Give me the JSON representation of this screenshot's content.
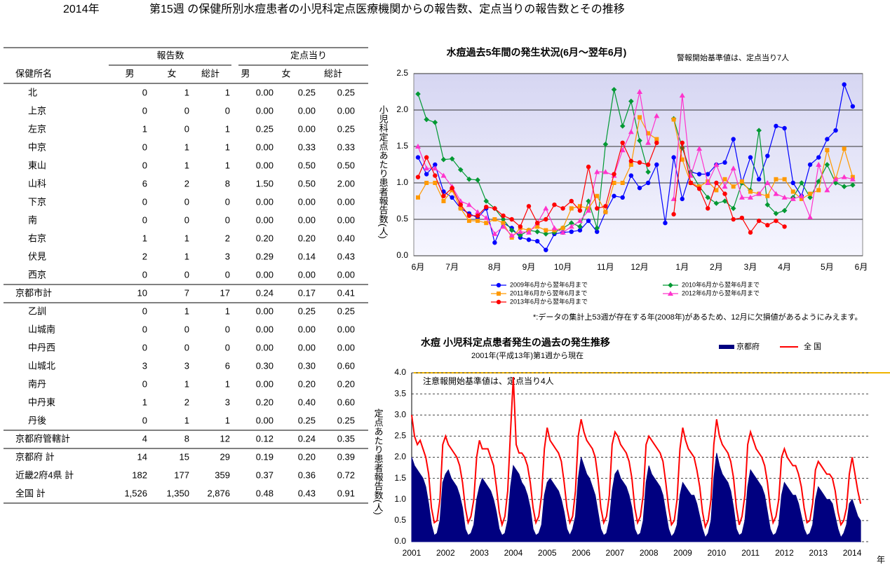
{
  "header": {
    "year": "2014年",
    "title": "第15週 の保健所別水痘患者の小児科定点医療機関からの報告数、定点当りの報告数とその推移"
  },
  "table": {
    "groups": [
      "報告数",
      "定点当り"
    ],
    "columns": [
      "保健所名",
      "男",
      "女",
      "総計",
      "男",
      "女",
      "総計"
    ],
    "sections": [
      {
        "rows": [
          [
            "北",
            "0",
            "1",
            "1",
            "0.00",
            "0.25",
            "0.25"
          ],
          [
            "上京",
            "0",
            "0",
            "0",
            "0.00",
            "0.00",
            "0.00"
          ],
          [
            "左京",
            "1",
            "0",
            "1",
            "0.25",
            "0.00",
            "0.25"
          ],
          [
            "中京",
            "0",
            "1",
            "1",
            "0.00",
            "0.33",
            "0.33"
          ],
          [
            "東山",
            "0",
            "1",
            "1",
            "0.00",
            "0.50",
            "0.50"
          ],
          [
            "山科",
            "6",
            "2",
            "8",
            "1.50",
            "0.50",
            "2.00"
          ],
          [
            "下京",
            "0",
            "0",
            "0",
            "0.00",
            "0.00",
            "0.00"
          ],
          [
            "南",
            "0",
            "0",
            "0",
            "0.00",
            "0.00",
            "0.00"
          ],
          [
            "右京",
            "1",
            "1",
            "2",
            "0.20",
            "0.20",
            "0.40"
          ],
          [
            "伏見",
            "2",
            "1",
            "3",
            "0.29",
            "0.14",
            "0.43"
          ],
          [
            "西京",
            "0",
            "0",
            "0",
            "0.00",
            "0.00",
            "0.00"
          ]
        ],
        "total": [
          "京都市計",
          "10",
          "7",
          "17",
          "0.24",
          "0.17",
          "0.41"
        ]
      },
      {
        "rows": [
          [
            "乙訓",
            "0",
            "1",
            "1",
            "0.00",
            "0.25",
            "0.25"
          ],
          [
            "山城南",
            "0",
            "0",
            "0",
            "0.00",
            "0.00",
            "0.00"
          ],
          [
            "中丹西",
            "0",
            "0",
            "0",
            "0.00",
            "0.00",
            "0.00"
          ],
          [
            "山城北",
            "3",
            "3",
            "6",
            "0.30",
            "0.30",
            "0.60"
          ],
          [
            "南丹",
            "0",
            "1",
            "1",
            "0.00",
            "0.20",
            "0.20"
          ],
          [
            "中丹東",
            "1",
            "2",
            "3",
            "0.20",
            "0.40",
            "0.60"
          ],
          [
            "丹後",
            "0",
            "1",
            "1",
            "0.00",
            "0.25",
            "0.25"
          ]
        ],
        "total": [
          "京都府管轄計",
          "4",
          "8",
          "12",
          "0.12",
          "0.24",
          "0.35"
        ]
      }
    ],
    "totals": [
      [
        "京都府 計",
        "14",
        "15",
        "29",
        "0.19",
        "0.20",
        "0.39"
      ],
      [
        "近畿2府4県 計",
        "182",
        "177",
        "359",
        "0.37",
        "0.36",
        "0.72"
      ],
      [
        "全国 計",
        "1,526",
        "1,350",
        "2,876",
        "0.48",
        "0.43",
        "0.91"
      ]
    ]
  },
  "chart_data": [
    {
      "type": "line",
      "title": "水痘過去5年間の発生状況(6月～翌年6月)",
      "annotation": "警報開始基準値は、定点当り7人",
      "y_label": "小児科定点あたり患者報告数(人)",
      "note": "*:データの集計上53週が存在する年(2008年)があるため、12月に欠損値があるようにみえます。",
      "ylim": [
        0,
        2.5
      ],
      "yticks": [
        {
          "value": 0,
          "label": "0.0"
        },
        0.5,
        {
          "value": 1,
          "label": "1.0"
        },
        1.5,
        {
          "value": 2,
          "label": "2.0"
        },
        2.5
      ],
      "grid": true,
      "categories": [
        "6月",
        null,
        null,
        null,
        "7月",
        null,
        null,
        null,
        null,
        "8月",
        null,
        null,
        null,
        "9月",
        null,
        null,
        null,
        "10月",
        null,
        null,
        null,
        null,
        "11月",
        null,
        null,
        null,
        "12月",
        null,
        null,
        null,
        null,
        "1月",
        null,
        null,
        null,
        "2月",
        null,
        null,
        null,
        "3月",
        null,
        null,
        null,
        "4月",
        null,
        null,
        null,
        null,
        "5月",
        null,
        null,
        null,
        "6月"
      ],
      "series": [
        {
          "name": "2009年6月から翌年6月まで",
          "color": "#0000ff",
          "marker": "circle",
          "values": [
            1.35,
            1.12,
            1.25,
            0.88,
            0.8,
            0.65,
            0.58,
            0.52,
            0.65,
            0.18,
            0.45,
            0.38,
            0.25,
            0.22,
            0.2,
            0.08,
            0.3,
            0.32,
            0.33,
            0.35,
            0.48,
            0.33,
            0.6,
            0.82,
            0.8,
            1.1,
            0.93,
            1.0,
            1.25,
            0.45,
            1.35,
            0.78,
            1.15,
            1.12,
            1.12,
            1.25,
            1.28,
            1.6,
            1.0,
            1.35,
            1.05,
            1.37,
            1.78,
            1.75,
            1.0,
            0.82,
            1.25,
            1.35,
            1.6,
            1.72,
            2.35,
            2.05,
            null
          ]
        },
        {
          "name": "2010年6月から翌年6月まで",
          "color": "#009933",
          "marker": "diamond",
          "values": [
            2.22,
            1.87,
            1.83,
            1.32,
            1.33,
            1.18,
            1.05,
            1.04,
            0.75,
            0.65,
            0.5,
            0.35,
            0.28,
            0.35,
            0.33,
            0.3,
            0.32,
            0.38,
            0.45,
            0.4,
            0.75,
            0.38,
            1.53,
            2.28,
            1.78,
            2.12,
            1.58,
            1.15,
            null,
            null,
            1.88,
            1.48,
            1.15,
            0.95,
            0.8,
            0.72,
            0.75,
            0.65,
            1.0,
            0.9,
            1.72,
            0.7,
            0.58,
            0.62,
            0.8,
            1.0,
            0.8,
            1.02,
            1.25,
            1.0,
            0.95,
            0.97,
            null
          ]
        },
        {
          "name": "2011年6月から翌年6月まで",
          "color": "#ff9900",
          "marker": "square",
          "values": [
            0.8,
            1.0,
            1.0,
            0.75,
            0.9,
            0.65,
            0.48,
            0.48,
            0.45,
            0.5,
            0.45,
            0.25,
            0.38,
            0.35,
            0.4,
            0.35,
            0.35,
            0.38,
            0.65,
            0.68,
            0.65,
            0.82,
            0.6,
            1.0,
            1.0,
            1.25,
            1.9,
            1.68,
            1.6,
            null,
            1.87,
            1.32,
            1.0,
            0.95,
            1.02,
            0.9,
            1.05,
            0.95,
            1.02,
            0.88,
            0.85,
            0.82,
            1.05,
            1.05,
            0.88,
            0.78,
            0.85,
            0.9,
            1.45,
            1.05,
            1.47,
            1.08,
            null
          ]
        },
        {
          "name": "2012年6月から翌年6月まで",
          "color": "#ff33cc",
          "marker": "triangle",
          "values": [
            1.5,
            1.2,
            1.2,
            1.1,
            0.95,
            0.75,
            0.7,
            0.6,
            0.52,
            0.3,
            0.4,
            0.28,
            0.33,
            0.32,
            0.45,
            0.65,
            0.38,
            0.32,
            0.4,
            0.48,
            0.62,
            1.15,
            1.15,
            1.1,
            1.45,
            1.7,
            2.25,
            1.55,
            1.92,
            null,
            0.78,
            2.2,
            1.1,
            1.47,
            1.0,
            1.25,
            0.95,
            1.2,
            0.8,
            0.8,
            0.85,
            1.0,
            0.85,
            0.8,
            0.78,
            0.82,
            0.53,
            1.25,
            0.9,
            1.05,
            1.08,
            1.05,
            null
          ]
        },
        {
          "name": "2013年6月から翌年6月まで",
          "color": "#ff0000",
          "marker": "circle",
          "values": [
            1.08,
            1.35,
            1.1,
            0.82,
            0.93,
            0.7,
            0.55,
            0.55,
            0.67,
            0.65,
            0.55,
            0.5,
            0.4,
            0.68,
            0.45,
            0.5,
            0.7,
            0.65,
            0.75,
            0.62,
            1.22,
            0.65,
            0.68,
            1.12,
            1.55,
            1.3,
            1.28,
            1.25,
            1.55,
            null,
            0.57,
            1.55,
            1.0,
            0.92,
            0.65,
            1.0,
            0.85,
            0.5,
            0.52,
            0.32,
            0.48,
            0.42,
            0.48,
            0.4,
            null,
            null,
            null,
            null,
            null,
            null,
            null,
            null,
            null
          ]
        }
      ]
    },
    {
      "type": "area",
      "title": "水痘 小児科定点患者発生の過去の発生推移",
      "subtitle": "2001年(平成13年)第1週から現在",
      "annotation": "注意報開始基準値は、定点当り4人",
      "y_label": "定点あたり患者報告数(人)",
      "x_label": "年",
      "ylim": [
        0,
        4
      ],
      "yticks": [
        {
          "value": 0,
          "label": "0.0"
        },
        0.5,
        {
          "value": 1,
          "label": "1.0"
        },
        1.5,
        {
          "value": 2,
          "label": "2.0"
        },
        2.5,
        {
          "value": 3,
          "label": "3.0"
        },
        3.5,
        {
          "value": 4,
          "label": "4.0"
        }
      ],
      "grid": true,
      "categories": [
        "2001",
        null,
        null,
        null,
        null,
        null,
        null,
        null,
        null,
        null,
        null,
        null,
        "2002",
        null,
        null,
        null,
        null,
        null,
        null,
        null,
        null,
        null,
        null,
        null,
        "2003",
        null,
        null,
        null,
        null,
        null,
        null,
        null,
        null,
        null,
        null,
        null,
        "2004",
        null,
        null,
        null,
        null,
        null,
        null,
        null,
        null,
        null,
        null,
        null,
        "2005",
        null,
        null,
        null,
        null,
        null,
        null,
        null,
        null,
        null,
        null,
        null,
        "2006",
        null,
        null,
        null,
        null,
        null,
        null,
        null,
        null,
        null,
        null,
        null,
        "2007",
        null,
        null,
        null,
        null,
        null,
        null,
        null,
        null,
        null,
        null,
        null,
        "2008",
        null,
        null,
        null,
        null,
        null,
        null,
        null,
        null,
        null,
        null,
        null,
        "2009",
        null,
        null,
        null,
        null,
        null,
        null,
        null,
        null,
        null,
        null,
        null,
        "2010",
        null,
        null,
        null,
        null,
        null,
        null,
        null,
        null,
        null,
        null,
        null,
        "2011",
        null,
        null,
        null,
        null,
        null,
        null,
        null,
        null,
        null,
        null,
        null,
        "2012",
        null,
        null,
        null,
        null,
        null,
        null,
        null,
        null,
        null,
        null,
        null,
        "2013",
        null,
        null,
        null,
        null,
        null,
        null,
        null,
        null,
        null,
        null,
        null,
        "2014",
        null,
        null,
        null
      ],
      "series": [
        {
          "name": "京都府",
          "color": "#000080",
          "type": "area",
          "values": [
            2.0,
            1.8,
            1.7,
            1.6,
            1.5,
            1.3,
            0.9,
            0.4,
            0.15,
            0.2,
            0.5,
            1.4,
            1.6,
            1.7,
            1.5,
            1.4,
            1.3,
            1.1,
            0.8,
            0.3,
            0.15,
            0.2,
            0.4,
            1.0,
            1.3,
            1.5,
            1.4,
            1.3,
            1.2,
            1.0,
            0.7,
            0.3,
            0.15,
            0.2,
            0.5,
            1.3,
            1.8,
            1.7,
            1.6,
            1.4,
            1.3,
            1.1,
            0.8,
            0.3,
            0.15,
            0.2,
            0.4,
            1.1,
            1.4,
            1.5,
            1.4,
            1.3,
            1.2,
            1.0,
            0.7,
            0.3,
            0.15,
            0.3,
            0.6,
            1.5,
            2.0,
            1.8,
            1.6,
            1.5,
            1.3,
            1.1,
            0.7,
            0.3,
            0.15,
            0.2,
            0.5,
            1.2,
            1.6,
            1.7,
            1.5,
            1.4,
            1.3,
            1.1,
            0.8,
            0.3,
            0.15,
            0.2,
            0.5,
            1.4,
            1.8,
            1.6,
            1.5,
            1.4,
            1.3,
            1.1,
            0.7,
            0.3,
            0.12,
            0.2,
            0.4,
            1.1,
            1.4,
            1.3,
            1.2,
            1.1,
            1.1,
            0.9,
            0.6,
            0.3,
            0.1,
            0.2,
            0.5,
            1.5,
            2.1,
            1.8,
            1.6,
            1.5,
            1.4,
            1.2,
            0.8,
            0.3,
            0.15,
            0.2,
            0.5,
            1.3,
            1.7,
            1.6,
            1.5,
            1.4,
            1.3,
            1.1,
            0.7,
            0.3,
            0.15,
            0.2,
            0.4,
            1.1,
            1.4,
            1.3,
            1.2,
            1.1,
            1.1,
            0.9,
            0.6,
            0.3,
            0.15,
            0.2,
            0.4,
            1.0,
            1.3,
            1.2,
            1.1,
            1.0,
            1.0,
            0.9,
            0.6,
            0.3,
            0.1,
            0.2,
            0.4,
            0.9,
            1.0,
            0.8,
            0.6,
            0.5
          ]
        },
        {
          "name": "全 国",
          "color": "#ff0000",
          "type": "line",
          "values": [
            3.0,
            2.5,
            2.3,
            2.4,
            2.2,
            2.0,
            1.6,
            0.8,
            0.45,
            0.5,
            1.0,
            2.3,
            2.5,
            2.3,
            2.2,
            2.1,
            2.0,
            1.8,
            1.4,
            0.8,
            0.45,
            0.6,
            1.0,
            2.0,
            2.4,
            2.2,
            2.2,
            2.2,
            2.0,
            1.8,
            1.3,
            0.7,
            0.4,
            0.6,
            1.2,
            2.6,
            3.9,
            2.3,
            2.1,
            2.1,
            2.0,
            1.8,
            1.4,
            0.8,
            0.45,
            0.6,
            1.1,
            2.2,
            2.7,
            2.4,
            2.3,
            2.2,
            2.1,
            1.9,
            1.4,
            0.8,
            0.45,
            0.6,
            1.2,
            2.5,
            2.9,
            2.6,
            2.4,
            2.3,
            2.2,
            2.0,
            1.5,
            0.8,
            0.45,
            0.6,
            1.1,
            2.3,
            2.6,
            2.5,
            2.3,
            2.2,
            2.1,
            1.9,
            1.5,
            0.8,
            0.45,
            0.6,
            1.1,
            2.3,
            2.5,
            2.4,
            2.3,
            2.2,
            2.1,
            1.9,
            1.4,
            0.8,
            0.4,
            0.5,
            1.0,
            2.2,
            2.7,
            2.4,
            2.2,
            2.1,
            2.0,
            1.7,
            1.3,
            0.7,
            0.35,
            0.5,
            1.0,
            2.3,
            2.9,
            2.5,
            2.3,
            2.2,
            2.1,
            1.9,
            1.5,
            0.8,
            0.4,
            0.6,
            1.1,
            2.3,
            2.6,
            2.4,
            2.2,
            2.1,
            2.0,
            1.8,
            1.4,
            0.8,
            0.45,
            0.6,
            1.0,
            2.0,
            2.2,
            2.0,
            1.9,
            1.8,
            1.8,
            1.6,
            1.3,
            0.8,
            0.45,
            0.5,
            0.9,
            1.7,
            1.9,
            1.8,
            1.7,
            1.6,
            1.6,
            1.5,
            1.2,
            0.7,
            0.4,
            0.5,
            0.8,
            1.6,
            2.0,
            1.6,
            1.2,
            0.9
          ]
        }
      ]
    }
  ]
}
